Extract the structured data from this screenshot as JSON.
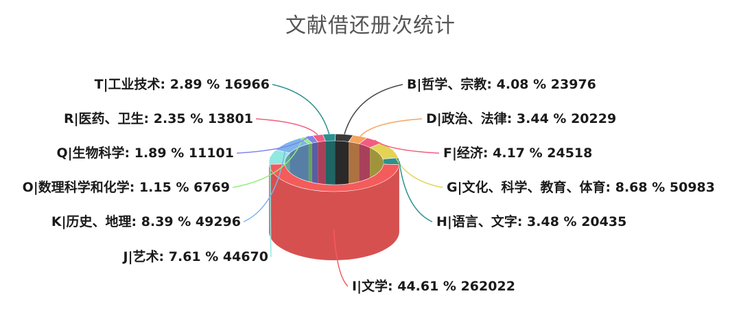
{
  "chart_data": {
    "type": "pie",
    "title": "文献借还册次统计",
    "slices": [
      {
        "code": "B",
        "label": "B|哲学、宗教",
        "percent": 4.08,
        "value": 23976,
        "percent_text": "4.08 %",
        "color": "#3a3a3a"
      },
      {
        "code": "D",
        "label": "D|政治、法律",
        "percent": 3.44,
        "value": 20229,
        "percent_text": "3.44 %",
        "color": "#f7a35c"
      },
      {
        "code": "F",
        "label": "F|经济",
        "percent": 4.17,
        "value": 24518,
        "percent_text": "4.17 %",
        "color": "#f15c80"
      },
      {
        "code": "G",
        "label": "G|文化、科学、教育、体育",
        "percent": 8.68,
        "value": 50983,
        "percent_text": "8.68 %",
        "color": "#e4d354"
      },
      {
        "code": "H",
        "label": "H|语言、文字",
        "percent": 3.48,
        "value": 20435,
        "percent_text": "3.48 %",
        "color": "#2b908f"
      },
      {
        "code": "I",
        "label": "I|文学",
        "percent": 44.61,
        "value": 262022,
        "percent_text": "44.61 %",
        "color": "#f45b5b"
      },
      {
        "code": "J",
        "label": "J|艺术",
        "percent": 7.61,
        "value": 44670,
        "percent_text": "7.61 %",
        "color": "#91e8e1"
      },
      {
        "code": "K",
        "label": "K|历史、地理",
        "percent": 8.39,
        "value": 49296,
        "percent_text": "8.39 %",
        "color": "#7cb5ec"
      },
      {
        "code": "O",
        "label": "O|数理科学和化学",
        "percent": 1.15,
        "value": 6769,
        "percent_text": "1.15 %",
        "color": "#90ed7d"
      },
      {
        "code": "Q",
        "label": "Q|生物科学",
        "percent": 1.89,
        "value": 11101,
        "percent_text": "1.89 %",
        "color": "#8085e9"
      },
      {
        "code": "R",
        "label": "R|医药、卫生",
        "percent": 2.35,
        "value": 13801,
        "percent_text": "2.35 %",
        "color": "#f15c80"
      },
      {
        "code": "T",
        "label": "T|工业技术",
        "percent": 2.89,
        "value": 16966,
        "percent_text": "2.89 %",
        "color": "#2b908f"
      }
    ],
    "legend": "none",
    "style": "3d-donut"
  }
}
